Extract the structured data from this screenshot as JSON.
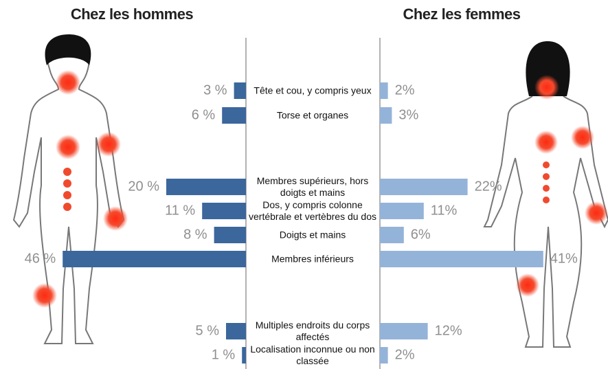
{
  "chart_data": {
    "type": "butterfly-bar",
    "titles": [
      "Chez les hommes",
      "Chez les femmes"
    ],
    "categories": [
      "Tête et cou, y compris yeux",
      "Torse et organes",
      "Membres supérieurs, hors doigts et mains",
      "Dos, y compris colonne vertébrale et vertèbres du dos",
      "Doigts et mains",
      "Membres inférieurs",
      "Multiples endroits du corps affectés",
      "Localisation inconnue ou non classée"
    ],
    "series": [
      {
        "name": "Chez les hommes",
        "color": "#3b679c",
        "values": [
          3,
          6,
          20,
          11,
          8,
          46,
          5,
          1
        ],
        "value_labels": [
          "3 %",
          "6 %",
          "20 %",
          "11 %",
          "8 %",
          "46 %",
          "5 %",
          "1 %"
        ]
      },
      {
        "name": "Chez les femmes",
        "color": "#94b3d9",
        "values": [
          2,
          3,
          22,
          11,
          6,
          41,
          12,
          2
        ],
        "value_labels": [
          "2%",
          "3%",
          "22%",
          "11%",
          "6%",
          "41%",
          "12%",
          "2%"
        ]
      }
    ]
  }
}
